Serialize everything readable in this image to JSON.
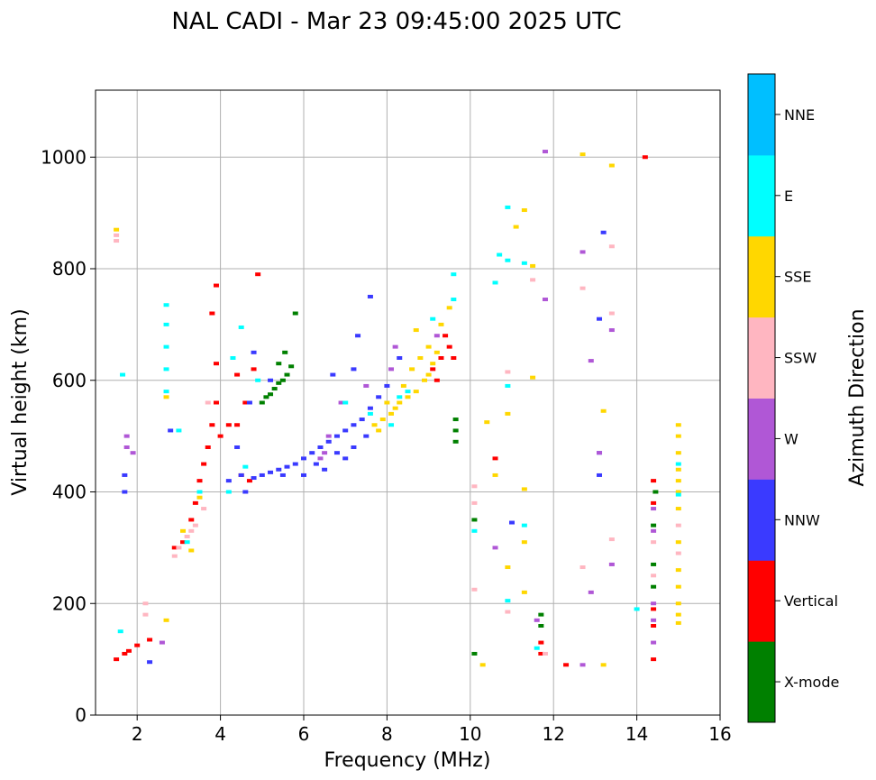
{
  "chart_data": {
    "type": "scatter",
    "title": "NAL CADI - Mar 23 09:45:00 2025 UTC",
    "xlabel": "Frequency (MHz)",
    "ylabel": "Virtual height (km)",
    "xlim": [
      1,
      16
    ],
    "ylim": [
      0,
      1120
    ],
    "xticks": [
      2,
      4,
      6,
      8,
      10,
      12,
      14,
      16
    ],
    "yticks": [
      0,
      200,
      400,
      600,
      800,
      1000
    ],
    "grid": true,
    "colorbar": {
      "label": "Azimuth Direction",
      "categories": [
        "X-mode",
        "Vertical",
        "NNW",
        "W",
        "SSW",
        "SSE",
        "E",
        "NNE"
      ],
      "colors": [
        "#008000",
        "#ff0000",
        "#3a3aff",
        "#b057d6",
        "#ffb6c1",
        "#ffd700",
        "#00ffff",
        "#00bfff"
      ]
    },
    "series": [
      {
        "name": "X-mode",
        "points": [
          [
            5.0,
            560
          ],
          [
            5.1,
            570
          ],
          [
            5.2,
            575
          ],
          [
            5.3,
            585
          ],
          [
            5.4,
            595
          ],
          [
            5.5,
            600
          ],
          [
            5.6,
            610
          ],
          [
            5.7,
            625
          ],
          [
            5.55,
            650
          ],
          [
            5.8,
            720
          ],
          [
            5.4,
            630
          ],
          [
            9.65,
            490
          ],
          [
            9.65,
            510
          ],
          [
            9.65,
            530
          ],
          [
            10.1,
            110
          ],
          [
            10.1,
            350
          ],
          [
            11.7,
            180
          ],
          [
            11.7,
            160
          ],
          [
            14.4,
            230
          ],
          [
            14.4,
            270
          ],
          [
            14.4,
            340
          ],
          [
            14.45,
            400
          ]
        ]
      },
      {
        "name": "Vertical",
        "points": [
          [
            1.5,
            100
          ],
          [
            1.7,
            110
          ],
          [
            1.8,
            115
          ],
          [
            2.0,
            125
          ],
          [
            2.3,
            135
          ],
          [
            2.9,
            300
          ],
          [
            3.1,
            310
          ],
          [
            3.3,
            350
          ],
          [
            3.4,
            380
          ],
          [
            3.5,
            420
          ],
          [
            3.6,
            450
          ],
          [
            3.7,
            480
          ],
          [
            3.8,
            520
          ],
          [
            3.9,
            560
          ],
          [
            3.9,
            630
          ],
          [
            3.8,
            720
          ],
          [
            3.9,
            770
          ],
          [
            4.0,
            500
          ],
          [
            4.2,
            520
          ],
          [
            4.4,
            520
          ],
          [
            4.6,
            560
          ],
          [
            4.8,
            620
          ],
          [
            4.9,
            790
          ],
          [
            4.4,
            610
          ],
          [
            4.5,
            430
          ],
          [
            4.7,
            420
          ],
          [
            9.1,
            620
          ],
          [
            9.2,
            600
          ],
          [
            9.3,
            640
          ],
          [
            9.4,
            680
          ],
          [
            9.5,
            660
          ],
          [
            9.6,
            640
          ],
          [
            10.6,
            460
          ],
          [
            11.7,
            130
          ],
          [
            11.7,
            110
          ],
          [
            12.3,
            90
          ],
          [
            14.2,
            1000
          ],
          [
            14.4,
            160
          ],
          [
            14.4,
            190
          ],
          [
            14.4,
            100
          ],
          [
            14.4,
            380
          ],
          [
            14.4,
            420
          ]
        ]
      },
      {
        "name": "NNW",
        "points": [
          [
            1.7,
            400
          ],
          [
            1.7,
            430
          ],
          [
            2.3,
            95
          ],
          [
            2.8,
            510
          ],
          [
            4.2,
            420
          ],
          [
            4.5,
            430
          ],
          [
            4.8,
            425
          ],
          [
            5.0,
            430
          ],
          [
            5.2,
            435
          ],
          [
            5.4,
            440
          ],
          [
            5.6,
            445
          ],
          [
            5.8,
            450
          ],
          [
            6.0,
            460
          ],
          [
            6.2,
            470
          ],
          [
            6.4,
            480
          ],
          [
            6.6,
            490
          ],
          [
            6.8,
            500
          ],
          [
            7.0,
            510
          ],
          [
            7.2,
            520
          ],
          [
            7.4,
            530
          ],
          [
            7.6,
            550
          ],
          [
            7.8,
            570
          ],
          [
            8.0,
            590
          ],
          [
            6.0,
            430
          ],
          [
            6.5,
            440
          ],
          [
            7.0,
            460
          ],
          [
            7.2,
            480
          ],
          [
            7.5,
            500
          ],
          [
            6.8,
            470
          ],
          [
            6.3,
            450
          ],
          [
            5.5,
            430
          ],
          [
            4.6,
            400
          ],
          [
            4.4,
            480
          ],
          [
            4.7,
            560
          ],
          [
            4.8,
            650
          ],
          [
            5.2,
            600
          ],
          [
            7.2,
            620
          ],
          [
            7.3,
            680
          ],
          [
            7.6,
            750
          ],
          [
            6.7,
            610
          ],
          [
            8.3,
            640
          ],
          [
            13.1,
            710
          ],
          [
            13.2,
            865
          ],
          [
            13.1,
            430
          ],
          [
            13.1,
            470
          ],
          [
            11.0,
            345
          ]
        ]
      },
      {
        "name": "W",
        "points": [
          [
            1.75,
            480
          ],
          [
            1.75,
            500
          ],
          [
            1.9,
            470
          ],
          [
            2.6,
            130
          ],
          [
            6.4,
            460
          ],
          [
            6.5,
            470
          ],
          [
            6.6,
            500
          ],
          [
            6.9,
            560
          ],
          [
            7.5,
            590
          ],
          [
            8.1,
            620
          ],
          [
            8.2,
            660
          ],
          [
            9.2,
            680
          ],
          [
            10.6,
            300
          ],
          [
            11.6,
            170
          ],
          [
            11.8,
            1010
          ],
          [
            11.8,
            745
          ],
          [
            12.7,
            830
          ],
          [
            12.7,
            90
          ],
          [
            12.9,
            635
          ],
          [
            12.9,
            220
          ],
          [
            13.1,
            470
          ],
          [
            13.4,
            690
          ],
          [
            13.4,
            270
          ],
          [
            14.4,
            370
          ],
          [
            14.4,
            200
          ],
          [
            14.4,
            130
          ],
          [
            14.4,
            330
          ],
          [
            14.4,
            170
          ]
        ]
      },
      {
        "name": "SSW",
        "points": [
          [
            1.5,
            860
          ],
          [
            1.5,
            850
          ],
          [
            2.2,
            200
          ],
          [
            2.2,
            180
          ],
          [
            3.0,
            300
          ],
          [
            3.2,
            320
          ],
          [
            3.3,
            330
          ],
          [
            3.4,
            340
          ],
          [
            3.6,
            370
          ],
          [
            2.9,
            285
          ],
          [
            3.7,
            560
          ],
          [
            10.1,
            410
          ],
          [
            10.1,
            380
          ],
          [
            10.1,
            225
          ],
          [
            10.9,
            615
          ],
          [
            10.9,
            185
          ],
          [
            11.5,
            780
          ],
          [
            11.8,
            110
          ],
          [
            12.7,
            765
          ],
          [
            12.7,
            265
          ],
          [
            13.4,
            840
          ],
          [
            13.4,
            720
          ],
          [
            13.4,
            315
          ],
          [
            14.4,
            310
          ],
          [
            14.4,
            250
          ],
          [
            15.0,
            340
          ],
          [
            15.0,
            290
          ]
        ]
      },
      {
        "name": "SSE",
        "points": [
          [
            1.5,
            870
          ],
          [
            2.7,
            570
          ],
          [
            2.7,
            170
          ],
          [
            3.1,
            330
          ],
          [
            3.3,
            295
          ],
          [
            3.5,
            390
          ],
          [
            7.7,
            520
          ],
          [
            7.9,
            530
          ],
          [
            8.1,
            540
          ],
          [
            8.3,
            560
          ],
          [
            8.5,
            570
          ],
          [
            8.7,
            580
          ],
          [
            8.9,
            600
          ],
          [
            9.0,
            610
          ],
          [
            9.1,
            630
          ],
          [
            9.2,
            650
          ],
          [
            8.0,
            560
          ],
          [
            8.4,
            590
          ],
          [
            8.6,
            620
          ],
          [
            8.8,
            640
          ],
          [
            9.0,
            660
          ],
          [
            8.7,
            690
          ],
          [
            9.3,
            700
          ],
          [
            9.5,
            730
          ],
          [
            7.8,
            510
          ],
          [
            8.2,
            550
          ],
          [
            10.3,
            90
          ],
          [
            10.4,
            525
          ],
          [
            10.6,
            430
          ],
          [
            10.9,
            540
          ],
          [
            10.9,
            265
          ],
          [
            11.1,
            875
          ],
          [
            11.3,
            905
          ],
          [
            11.3,
            310
          ],
          [
            11.3,
            405
          ],
          [
            11.3,
            220
          ],
          [
            11.5,
            805
          ],
          [
            11.5,
            605
          ],
          [
            12.7,
            1005
          ],
          [
            13.2,
            545
          ],
          [
            13.2,
            90
          ],
          [
            13.4,
            985
          ],
          [
            15.0,
            520
          ],
          [
            15.0,
            500
          ],
          [
            15.0,
            470
          ],
          [
            15.0,
            440
          ],
          [
            15.0,
            420
          ],
          [
            15.0,
            400
          ],
          [
            15.0,
            370
          ],
          [
            15.0,
            310
          ],
          [
            15.0,
            260
          ],
          [
            15.0,
            230
          ],
          [
            15.0,
            200
          ],
          [
            15.0,
            180
          ],
          [
            15.0,
            165
          ]
        ]
      },
      {
        "name": "E",
        "points": [
          [
            1.6,
            150
          ],
          [
            1.65,
            610
          ],
          [
            2.7,
            580
          ],
          [
            2.7,
            620
          ],
          [
            2.7,
            660
          ],
          [
            2.7,
            700
          ],
          [
            2.7,
            735
          ],
          [
            3.0,
            510
          ],
          [
            3.2,
            310
          ],
          [
            3.5,
            400
          ],
          [
            4.2,
            400
          ],
          [
            4.6,
            445
          ],
          [
            4.5,
            695
          ],
          [
            4.3,
            640
          ],
          [
            4.9,
            600
          ],
          [
            7.0,
            560
          ],
          [
            7.6,
            540
          ],
          [
            8.1,
            520
          ],
          [
            8.3,
            570
          ],
          [
            8.5,
            580
          ],
          [
            9.1,
            710
          ],
          [
            9.6,
            745
          ],
          [
            9.6,
            790
          ],
          [
            10.1,
            330
          ],
          [
            10.6,
            775
          ],
          [
            10.7,
            825
          ],
          [
            10.9,
            815
          ],
          [
            10.9,
            910
          ],
          [
            10.9,
            590
          ],
          [
            10.9,
            205
          ],
          [
            11.3,
            810
          ],
          [
            11.3,
            340
          ],
          [
            11.6,
            120
          ],
          [
            14.0,
            190
          ],
          [
            15.0,
            450
          ],
          [
            15.0,
            395
          ]
        ]
      },
      {
        "name": "NNE",
        "points": []
      }
    ]
  }
}
